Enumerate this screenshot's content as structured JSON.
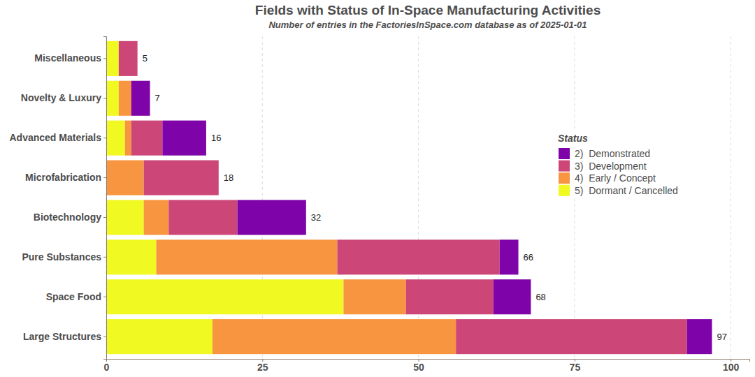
{
  "chart_data": {
    "type": "bar",
    "title": "Fields with Status of In-Space Manufacturing Activities",
    "subtitle": "Number of entries in the FactoriesInSpace.com database as of 2025-01-01",
    "orientation": "horizontal",
    "stacked": true,
    "grid": true,
    "legend": "right",
    "legend_title": "Status",
    "categories": [
      "Miscellaneous",
      "Novelty & Luxury",
      "Advanced Materials",
      "Microfabrication",
      "Biotechnology",
      "Pure Substances",
      "Space Food",
      "Large Structures"
    ],
    "series": [
      {
        "name": "2)  Demonstrated",
        "color": "#7e03a8",
        "values": [
          0,
          3,
          7,
          0,
          11,
          3,
          6,
          4
        ]
      },
      {
        "name": "3)  Development",
        "color": "#cc4778",
        "values": [
          3,
          0,
          5,
          12,
          11,
          26,
          14,
          37
        ]
      },
      {
        "name": "4)  Early / Concept",
        "color": "#f89540",
        "values": [
          0,
          2,
          1,
          6,
          4,
          29,
          10,
          39
        ]
      },
      {
        "name": "5)  Dormant / Cancelled",
        "color": "#f0f921",
        "values": [
          2,
          2,
          3,
          0,
          6,
          8,
          38,
          17
        ]
      }
    ],
    "totals": [
      5,
      7,
      16,
      18,
      32,
      66,
      68,
      97
    ],
    "xlim": [
      0,
      103
    ],
    "xticks": [
      0,
      25,
      50,
      75,
      100
    ]
  }
}
